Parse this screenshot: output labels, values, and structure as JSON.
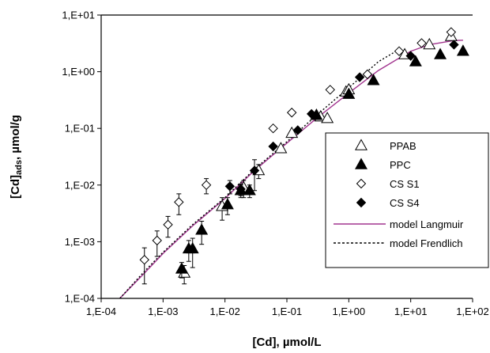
{
  "chart_data": {
    "type": "scatter",
    "xscale": "log",
    "yscale": "log",
    "xlim": [
      0.0001,
      100
    ],
    "ylim": [
      0.0001,
      10
    ],
    "xticks": [
      "1,E-04",
      "1,E-03",
      "1,E-02",
      "1,E-01",
      "1,E+00",
      "1,E+01",
      "1,E+02"
    ],
    "yticks": [
      "1,E-04",
      "1,E-03",
      "1,E-02",
      "1,E-01",
      "1,E+00",
      "1,E+01"
    ],
    "xlabel": "[Cd], µmol/L",
    "ylabel_main": "[Cd]",
    "ylabel_sub": "ads",
    "ylabel_tail": ", µmol/g",
    "grid": false,
    "legend_position": "right",
    "series": [
      {
        "name": "PPAB",
        "marker": "triangle-open",
        "color": "#000000",
        "points": [
          [
            0.0022,
            0.00028,
            0.0001
          ],
          [
            0.009,
            0.0042,
            0.0018
          ],
          [
            0.02,
            0.009,
            0.003
          ],
          [
            0.035,
            0.018,
            0.005
          ],
          [
            0.08,
            0.044,
            0
          ],
          [
            0.12,
            0.082,
            0
          ],
          [
            0.3,
            0.17,
            0
          ],
          [
            0.35,
            0.16,
            0
          ],
          [
            0.45,
            0.15,
            0
          ],
          [
            0.9,
            0.44,
            0
          ],
          [
            1.0,
            0.48,
            0
          ],
          [
            8.0,
            2.0,
            0
          ],
          [
            20.0,
            3.0,
            0
          ],
          [
            45.0,
            4.2,
            0
          ]
        ]
      },
      {
        "name": "PPC",
        "marker": "triangle-filled",
        "color": "#000000",
        "points": [
          [
            0.002,
            0.00033,
            0.0001
          ],
          [
            0.0026,
            0.00075,
            0.0003
          ],
          [
            0.003,
            0.00075,
            0.0004
          ],
          [
            0.0042,
            0.0016,
            0.0007
          ],
          [
            0.011,
            0.0045,
            0.0015
          ],
          [
            0.018,
            0.008,
            0.002
          ],
          [
            0.025,
            0.008,
            0.002
          ],
          [
            0.3,
            0.17,
            0
          ],
          [
            1.0,
            0.4,
            0
          ],
          [
            2.5,
            0.7,
            0
          ],
          [
            12.0,
            1.5,
            0
          ],
          [
            30.0,
            2.0,
            0
          ],
          [
            70.0,
            2.3,
            0
          ]
        ]
      },
      {
        "name": "CS S1",
        "marker": "diamond-open",
        "color": "#000000",
        "points": [
          [
            0.0005,
            0.00048,
            0.0003
          ],
          [
            0.0008,
            0.00105,
            0.0005
          ],
          [
            0.0012,
            0.002,
            0.0008
          ],
          [
            0.0018,
            0.005,
            0.002
          ],
          [
            0.005,
            0.01,
            0.003
          ],
          [
            0.06,
            0.1,
            0
          ],
          [
            0.12,
            0.19,
            0
          ],
          [
            0.5,
            0.48,
            0
          ],
          [
            2.0,
            0.9,
            0
          ],
          [
            6.5,
            2.3,
            0
          ],
          [
            15.0,
            3.2,
            0
          ],
          [
            45.0,
            5.0,
            0
          ]
        ]
      },
      {
        "name": "CS S4",
        "marker": "diamond-filled",
        "color": "#000000",
        "points": [
          [
            0.012,
            0.0095,
            0.0025
          ],
          [
            0.018,
            0.0085,
            0.002
          ],
          [
            0.03,
            0.018,
            0.01
          ],
          [
            0.06,
            0.048,
            0
          ],
          [
            0.15,
            0.093,
            0
          ],
          [
            0.25,
            0.18,
            0
          ],
          [
            1.5,
            0.8,
            0
          ],
          [
            10.0,
            1.9,
            0
          ],
          [
            50.0,
            3.0,
            0
          ]
        ]
      }
    ],
    "models": [
      {
        "name": "model Langmuir",
        "style": "solid",
        "color": "#a2358f",
        "x": [
          0.0002,
          0.0005,
          0.001,
          0.003,
          0.01,
          0.03,
          0.1,
          0.3,
          1,
          3,
          10,
          20,
          50,
          70
        ],
        "y": [
          0.0001,
          0.00028,
          0.00062,
          0.0019,
          0.0058,
          0.018,
          0.055,
          0.15,
          0.42,
          1.05,
          2.3,
          3.0,
          3.55,
          3.6
        ]
      },
      {
        "name": "model Frendlich",
        "style": "dotted",
        "color": "#000000",
        "x": [
          0.0002,
          0.0005,
          0.001,
          0.003,
          0.01,
          0.03,
          0.1,
          0.3,
          1,
          3,
          7
        ],
        "y": [
          0.0001,
          0.0003,
          0.00065,
          0.002,
          0.006,
          0.019,
          0.058,
          0.17,
          0.52,
          1.5,
          2.6
        ]
      }
    ]
  }
}
